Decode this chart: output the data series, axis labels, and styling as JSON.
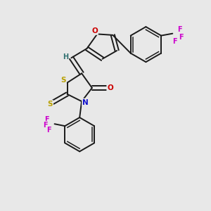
{
  "background_color": "#e8e8e8",
  "bond_color": "#1a1a1a",
  "atom_colors": {
    "S": "#b8a000",
    "N": "#1010cc",
    "O": "#cc0000",
    "F": "#cc00cc",
    "H": "#307070",
    "C": "#1a1a1a"
  },
  "figsize": [
    3.0,
    3.0
  ],
  "dpi": 100,
  "lw": 1.4,
  "inner_lw": 1.1
}
